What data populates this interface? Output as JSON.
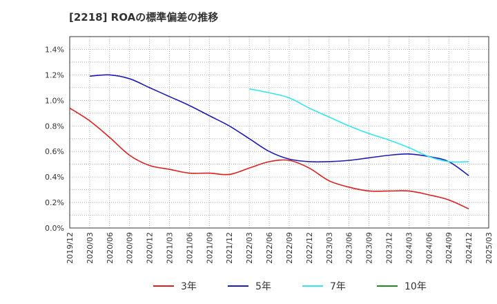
{
  "chart_data": {
    "type": "line",
    "title": "[2218]  ROAの標準偏差の推移",
    "xlabel": "",
    "ylabel": "",
    "ylim": [
      0,
      1.5
    ],
    "grid": true,
    "legend_position": "bottom",
    "y_ticks": [
      "0.0%",
      "0.2%",
      "0.4%",
      "0.6%",
      "0.8%",
      "1.0%",
      "1.2%",
      "1.4%"
    ],
    "x_ticks": [
      "2019/12",
      "2020/03",
      "2020/06",
      "2020/09",
      "2020/12",
      "2021/03",
      "2021/06",
      "2021/09",
      "2021/12",
      "2022/03",
      "2022/06",
      "2022/09",
      "2022/12",
      "2023/03",
      "2023/06",
      "2023/09",
      "2023/12",
      "2024/03",
      "2024/06",
      "2024/09",
      "2024/12",
      "2025/03"
    ],
    "series": [
      {
        "name": "3年",
        "color": "#dd1e1e",
        "x": [
          "2019/12",
          "2020/03",
          "2020/06",
          "2020/09",
          "2020/12",
          "2021/03",
          "2021/06",
          "2021/09",
          "2021/12",
          "2022/03",
          "2022/06",
          "2022/09",
          "2022/12",
          "2023/03",
          "2023/06",
          "2023/09",
          "2023/12",
          "2024/03",
          "2024/06",
          "2024/09",
          "2024/12"
        ],
        "values": [
          0.94,
          0.84,
          0.71,
          0.57,
          0.49,
          0.46,
          0.43,
          0.43,
          0.42,
          0.47,
          0.52,
          0.53,
          0.47,
          0.37,
          0.32,
          0.29,
          0.29,
          0.29,
          0.26,
          0.22,
          0.15
        ]
      },
      {
        "name": "5年",
        "color": "#1a1ab4",
        "x": [
          "2020/03",
          "2020/06",
          "2020/09",
          "2020/12",
          "2021/03",
          "2021/06",
          "2021/09",
          "2021/12",
          "2022/03",
          "2022/06",
          "2022/09",
          "2022/12",
          "2023/03",
          "2023/06",
          "2023/09",
          "2023/12",
          "2024/03",
          "2024/06",
          "2024/09",
          "2024/12"
        ],
        "values": [
          1.19,
          1.2,
          1.17,
          1.1,
          1.03,
          0.96,
          0.88,
          0.8,
          0.7,
          0.6,
          0.54,
          0.52,
          0.52,
          0.53,
          0.55,
          0.57,
          0.58,
          0.56,
          0.52,
          0.41
        ]
      },
      {
        "name": "7年",
        "color": "#33e5f0",
        "x": [
          "2022/03",
          "2022/06",
          "2022/09",
          "2022/12",
          "2023/03",
          "2023/06",
          "2023/09",
          "2023/12",
          "2024/03",
          "2024/06",
          "2024/09",
          "2024/12"
        ],
        "values": [
          1.09,
          1.06,
          1.02,
          0.94,
          0.87,
          0.8,
          0.74,
          0.69,
          0.63,
          0.56,
          0.52,
          0.52
        ]
      },
      {
        "name": "10年",
        "color": "#1f8a1f",
        "x": [],
        "values": []
      }
    ]
  }
}
